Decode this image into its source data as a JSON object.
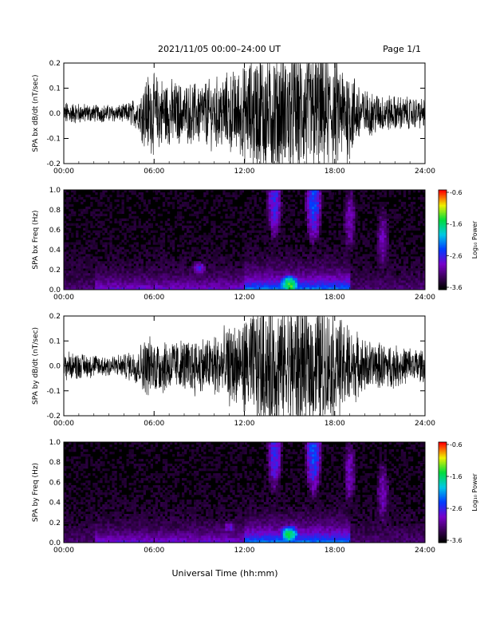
{
  "header": {
    "title": "2021/11/05  00:00–24:00 UT",
    "page": "Page 1/1"
  },
  "footer": {
    "xlabel": "Universal Time (hh:mm)"
  },
  "chart_data": [
    {
      "type": "line",
      "ylabel": "SPA bx dB/dt (nT/sec)",
      "xlabel": "",
      "x_ticks": [
        "00:00",
        "06:00",
        "12:00",
        "18:00",
        "24:00"
      ],
      "xlim": [
        0,
        24
      ],
      "ylim": [
        -0.2,
        0.2
      ],
      "y_ticks": [
        "-0.2",
        "-0.1",
        "0.0",
        "0.1",
        "0.2"
      ],
      "series_x_hours": [
        0,
        2,
        4,
        5,
        5.5,
        8,
        10,
        12,
        13,
        15,
        17,
        19,
        20,
        22,
        24
      ],
      "series_amplitude": [
        0.04,
        0.03,
        0.03,
        0.06,
        0.14,
        0.1,
        0.12,
        0.16,
        0.22,
        0.22,
        0.22,
        0.16,
        0.08,
        0.06,
        0.05
      ]
    },
    {
      "type": "heatmap",
      "ylabel": "SPA bx Freq (Hz)",
      "xlabel": "",
      "x_ticks": [
        "00:00",
        "06:00",
        "12:00",
        "18:00",
        "24:00"
      ],
      "xlim": [
        0,
        24
      ],
      "ylim": [
        0,
        1.0
      ],
      "y_ticks": [
        "0.0",
        "0.2",
        "0.4",
        "0.6",
        "0.8",
        "1.0"
      ],
      "colorbar": {
        "label": "Log₁₀ Power",
        "ticks": [
          "-0.6",
          "-1.6",
          "-2.6",
          "-3.6"
        ],
        "range": [
          -3.6,
          -0.6
        ]
      },
      "hotspots_hours_freq_power": [
        [
          14.0,
          0.9,
          -2.6
        ],
        [
          16.6,
          0.9,
          -2.4
        ],
        [
          15.0,
          0.05,
          -1.4
        ],
        [
          19.0,
          0.7,
          -2.9
        ],
        [
          21.2,
          0.5,
          -2.9
        ],
        [
          9.0,
          0.22,
          -2.7
        ]
      ]
    },
    {
      "type": "line",
      "ylabel": "SPA by dB/dt (nT/sec)",
      "xlabel": "",
      "x_ticks": [
        "00:00",
        "06:00",
        "12:00",
        "18:00",
        "24:00"
      ],
      "xlim": [
        0,
        24
      ],
      "ylim": [
        -0.2,
        0.2
      ],
      "y_ticks": [
        "-0.2",
        "-0.1",
        "0.0",
        "0.1",
        "0.2"
      ],
      "series_x_hours": [
        0,
        2,
        4,
        5,
        5.5,
        8,
        10,
        12,
        13,
        15,
        17,
        19,
        20,
        22,
        24
      ],
      "series_amplitude": [
        0.05,
        0.04,
        0.04,
        0.07,
        0.1,
        0.09,
        0.11,
        0.16,
        0.22,
        0.22,
        0.22,
        0.14,
        0.09,
        0.07,
        0.06
      ]
    },
    {
      "type": "heatmap",
      "ylabel": "SPA by Freq (Hz)",
      "xlabel": "",
      "x_ticks": [
        "00:00",
        "06:00",
        "12:00",
        "18:00",
        "24:00"
      ],
      "xlim": [
        0,
        24
      ],
      "ylim": [
        0,
        1.0
      ],
      "y_ticks": [
        "0.0",
        "0.2",
        "0.4",
        "0.6",
        "0.8",
        "1.0"
      ],
      "colorbar": {
        "label": "Log₁₀ Power",
        "ticks": [
          "-0.6",
          "-1.6",
          "-2.6",
          "-3.6"
        ],
        "range": [
          -3.6,
          -0.6
        ]
      },
      "hotspots_hours_freq_power": [
        [
          14.0,
          0.9,
          -2.6
        ],
        [
          16.6,
          0.9,
          -2.4
        ],
        [
          15.0,
          0.08,
          -1.6
        ],
        [
          19.0,
          0.7,
          -2.9
        ],
        [
          21.2,
          0.5,
          -2.9
        ],
        [
          11.0,
          0.15,
          -2.8
        ]
      ]
    }
  ]
}
